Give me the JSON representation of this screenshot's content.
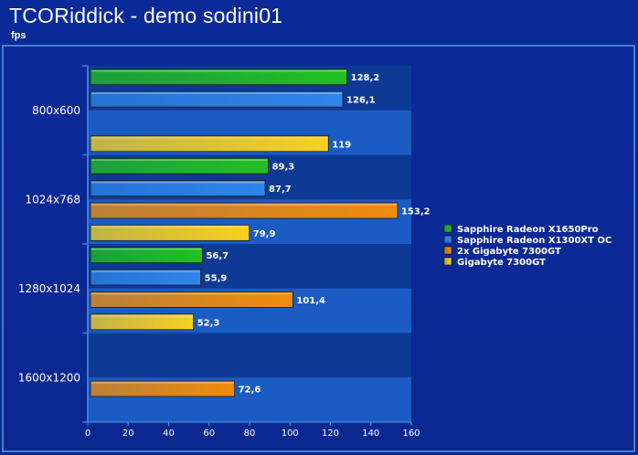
{
  "page": {
    "title": "TCORiddick - demo sodini01",
    "subtitle": "fps"
  },
  "colors": {
    "background": "#0b2a9a",
    "panel_border": "#5a9ae8",
    "band_dark": "#0e3a96",
    "band_light": "#1a5cc4",
    "text": "#ffffff"
  },
  "chart_data": {
    "type": "bar",
    "orientation": "horizontal",
    "title": "TCORiddick - demo sodini01",
    "ylabel": "fps",
    "xlim": [
      0,
      160
    ],
    "x_ticks": [
      "0",
      "20",
      "40",
      "60",
      "80",
      "100",
      "120",
      "140",
      "160"
    ],
    "categories": [
      "800x600",
      "1024x768",
      "1280x1024",
      "1600x1200"
    ],
    "series": [
      {
        "name": "Sapphire Radeon X1650Pro",
        "color": "#22c020",
        "values": [
          128.2,
          89.3,
          56.7,
          null
        ],
        "labels": [
          "128,2",
          "89,3",
          "56,7",
          ""
        ]
      },
      {
        "name": "Sapphire Radeon X1300XT OC",
        "color": "#2e86ea",
        "values": [
          126.1,
          87.7,
          55.9,
          null
        ],
        "labels": [
          "126,1",
          "87,7",
          "55,9",
          ""
        ]
      },
      {
        "name": "2x Gigabyte 7300GT",
        "color": "#f08c0c",
        "values": [
          null,
          153.2,
          101.4,
          72.6
        ],
        "labels": [
          "",
          "153,2",
          "101,4",
          "72,6"
        ]
      },
      {
        "name": "Gigabyte 7300GT",
        "color": "#f8d020",
        "values": [
          119,
          79.9,
          52.3,
          null
        ],
        "labels": [
          "119",
          "79,9",
          "52,3",
          ""
        ]
      }
    ],
    "legend_position": "right",
    "grid": false
  }
}
